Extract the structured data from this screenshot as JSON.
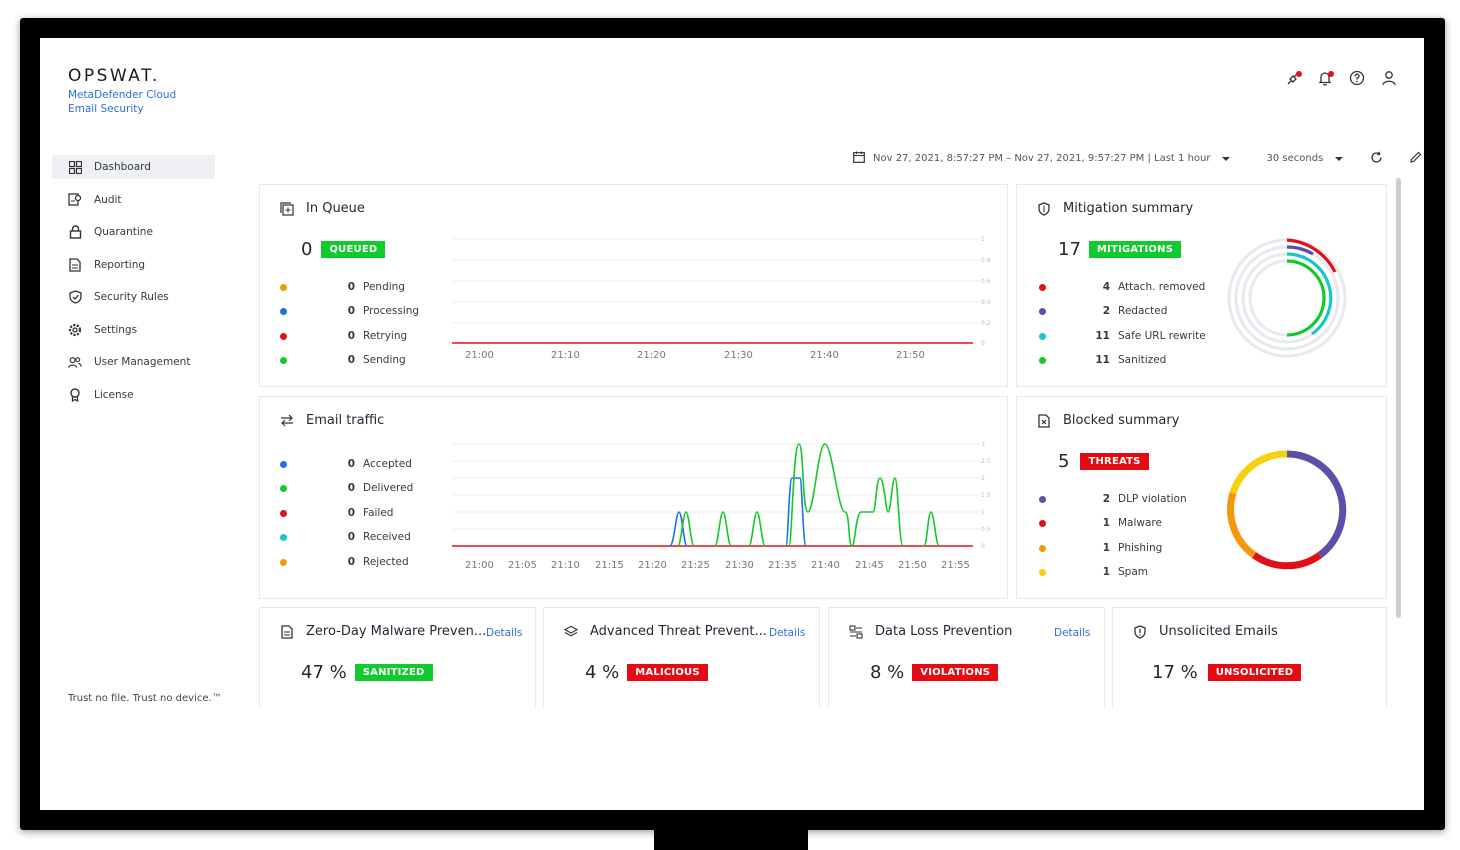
{
  "brand": {
    "logo": "OPSWAT.",
    "product_line1": "MetaDefender Cloud",
    "product_line2": "Email Security",
    "tagline": "Trust no file. Trust no device.™"
  },
  "sidebar": {
    "items": [
      {
        "label": "Dashboard",
        "icon": "dashboard-icon"
      },
      {
        "label": "Audit",
        "icon": "audit-icon"
      },
      {
        "label": "Quarantine",
        "icon": "lock-icon"
      },
      {
        "label": "Reporting",
        "icon": "report-icon"
      },
      {
        "label": "Security Rules",
        "icon": "shield-check-icon"
      },
      {
        "label": "Settings",
        "icon": "gear-icon"
      },
      {
        "label": "User Management",
        "icon": "users-icon"
      },
      {
        "label": "License",
        "icon": "license-icon"
      }
    ]
  },
  "toolbar": {
    "date_range": "Nov 27, 2021, 8:57:27 PM – Nov 27, 2021, 9:57:27 PM | Last 1 hour",
    "interval": "30 seconds"
  },
  "in_queue": {
    "title": "In Queue",
    "count": "0",
    "badge": "QUEUED",
    "legend": [
      {
        "value": "0",
        "label": "Pending",
        "color": "#f6960b"
      },
      {
        "value": "0",
        "label": "Processing",
        "color": "#1f6fe6"
      },
      {
        "value": "0",
        "label": "Retrying",
        "color": "#e0101a"
      },
      {
        "value": "0",
        "label": "Sending",
        "color": "#12c92a"
      }
    ],
    "x_ticks": [
      "21:00",
      "21:10",
      "21:20",
      "21:30",
      "21:40",
      "21:50"
    ],
    "y_ticks": [
      "1",
      "0.8",
      "0.6",
      "0.4",
      "0.2",
      "0"
    ]
  },
  "mitigation": {
    "title": "Mitigation summary",
    "count": "17",
    "badge": "MITIGATIONS",
    "legend": [
      {
        "value": "4",
        "label": "Attach. removed",
        "color": "#e0101a"
      },
      {
        "value": "2",
        "label": "Redacted",
        "color": "#5b4fa8"
      },
      {
        "value": "11",
        "label": "Safe URL rewrite",
        "color": "#19c6c6"
      },
      {
        "value": "11",
        "label": "Sanitized",
        "color": "#12c92a"
      }
    ]
  },
  "email_traffic": {
    "title": "Email traffic",
    "legend": [
      {
        "value": "0",
        "label": "Accepted",
        "color": "#1f6fe6"
      },
      {
        "value": "0",
        "label": "Delivered",
        "color": "#12c92a"
      },
      {
        "value": "0",
        "label": "Failed",
        "color": "#e0101a"
      },
      {
        "value": "0",
        "label": "Received",
        "color": "#19c6c6"
      },
      {
        "value": "0",
        "label": "Rejected",
        "color": "#f6960b"
      }
    ],
    "x_ticks": [
      "21:00",
      "21:05",
      "21:10",
      "21:15",
      "21:20",
      "21:25",
      "21:30",
      "21:35",
      "21:40",
      "21:45",
      "21:50",
      "21:55"
    ],
    "y_ticks": [
      "3",
      "2.5",
      "2",
      "1.5",
      "1",
      "0.5",
      "0"
    ]
  },
  "blocked": {
    "title": "Blocked summary",
    "count": "5",
    "badge": "THREATS",
    "legend": [
      {
        "value": "2",
        "label": "DLP violation",
        "color": "#5b4fa8"
      },
      {
        "value": "1",
        "label": "Malware",
        "color": "#e0101a"
      },
      {
        "value": "1",
        "label": "Phishing",
        "color": "#f6960b"
      },
      {
        "value": "1",
        "label": "Spam",
        "color": "#f5d00c"
      }
    ]
  },
  "bottom_cards": [
    {
      "title": "Zero-Day Malware Preven...",
      "details": "Details",
      "percent": "47 %",
      "badge": "SANITIZED",
      "badge_color": "green",
      "icon": "document-icon"
    },
    {
      "title": "Advanced Threat Prevent...",
      "details": "Details",
      "percent": "4 %",
      "badge": "MALICIOUS",
      "badge_color": "red",
      "icon": "layers-icon"
    },
    {
      "title": "Data Loss Prevention",
      "details": "Details",
      "percent": "8 %",
      "badge": "VIOLATIONS",
      "badge_color": "red",
      "icon": "dlp-icon"
    },
    {
      "title": "Unsolicited Emails",
      "details": "",
      "percent": "17 %",
      "badge": "UNSOLICITED",
      "badge_color": "red",
      "icon": "shield-icon"
    }
  ]
}
